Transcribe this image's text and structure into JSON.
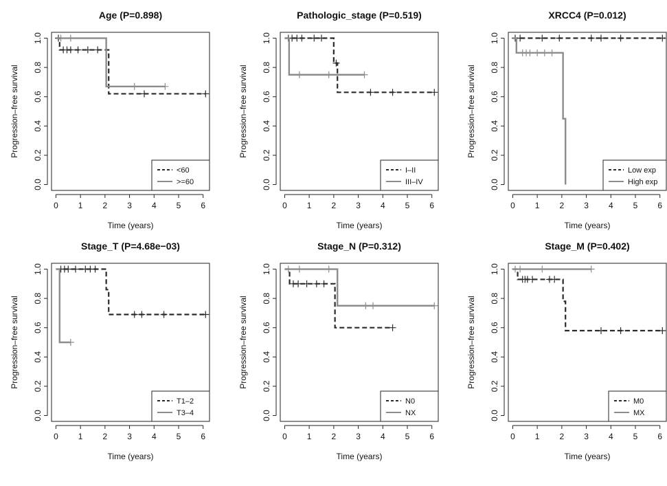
{
  "chart_data": [
    {
      "type": "line",
      "title": "Age (P=0.898)",
      "xlabel": "Time (years)",
      "ylabel": "Progression–free survival",
      "xlim": [
        0,
        6.2
      ],
      "ylim": [
        0,
        1.0
      ],
      "xticks": [
        "0",
        "1",
        "2",
        "3",
        "4",
        "5",
        "6"
      ],
      "yticks": [
        "0.0",
        "0.2",
        "0.4",
        "0.6",
        "0.8",
        "1.0"
      ],
      "legend_position": "bottom-right",
      "series": [
        {
          "name": "<60",
          "style": "dashed",
          "steps": [
            [
              0,
              1.0
            ],
            [
              0.15,
              0.92
            ],
            [
              2.15,
              0.62
            ],
            [
              6.1,
              0.62
            ]
          ],
          "censored": [
            [
              0.1,
              1.0
            ],
            [
              0.3,
              0.92
            ],
            [
              0.45,
              0.92
            ],
            [
              0.6,
              0.92
            ],
            [
              0.9,
              0.92
            ],
            [
              1.3,
              0.92
            ],
            [
              1.7,
              0.92
            ],
            [
              3.6,
              0.62
            ],
            [
              6.1,
              0.62
            ]
          ]
        },
        {
          "name": ">=60",
          "style": "solid",
          "steps": [
            [
              0,
              1.0
            ],
            [
              2.05,
              0.67
            ],
            [
              4.45,
              0.67
            ]
          ],
          "censored": [
            [
              0.2,
              1.0
            ],
            [
              0.6,
              1.0
            ],
            [
              3.2,
              0.67
            ],
            [
              4.45,
              0.67
            ]
          ]
        }
      ]
    },
    {
      "type": "line",
      "title": "Pathologic_stage (P=0.519)",
      "xlabel": "Time (years)",
      "ylabel": "Progression–free survival",
      "xlim": [
        0,
        6.2
      ],
      "ylim": [
        0,
        1.0
      ],
      "xticks": [
        "0",
        "1",
        "2",
        "3",
        "4",
        "5",
        "6"
      ],
      "yticks": [
        "0.0",
        "0.2",
        "0.4",
        "0.6",
        "0.8",
        "1.0"
      ],
      "legend_position": "bottom-right",
      "series": [
        {
          "name": "I–II",
          "style": "dashed",
          "steps": [
            [
              0,
              1.0
            ],
            [
              2.0,
              0.83
            ],
            [
              2.15,
              0.63
            ],
            [
              6.1,
              0.63
            ]
          ],
          "censored": [
            [
              0.15,
              1.0
            ],
            [
              0.3,
              1.0
            ],
            [
              0.5,
              1.0
            ],
            [
              0.7,
              1.0
            ],
            [
              1.2,
              1.0
            ],
            [
              1.5,
              1.0
            ],
            [
              2.1,
              0.83
            ],
            [
              3.5,
              0.63
            ],
            [
              4.4,
              0.63
            ],
            [
              6.1,
              0.63
            ]
          ]
        },
        {
          "name": "III–IV",
          "style": "solid",
          "steps": [
            [
              0,
              1.0
            ],
            [
              0.18,
              0.75
            ],
            [
              3.25,
              0.75
            ]
          ],
          "censored": [
            [
              0.6,
              0.75
            ],
            [
              1.8,
              0.75
            ],
            [
              3.25,
              0.75
            ]
          ]
        }
      ]
    },
    {
      "type": "line",
      "title": "XRCC4 (P=0.012)",
      "xlabel": "Time (years)",
      "ylabel": "Progression–free survival",
      "xlim": [
        0,
        6.2
      ],
      "ylim": [
        0,
        1.0
      ],
      "xticks": [
        "0",
        "1",
        "2",
        "3",
        "4",
        "5",
        "6"
      ],
      "yticks": [
        "0.0",
        "0.2",
        "0.4",
        "0.6",
        "0.8",
        "1.0"
      ],
      "legend_position": "bottom-right",
      "series": [
        {
          "name": "Low exp",
          "style": "dashed",
          "steps": [
            [
              0,
              1.0
            ],
            [
              6.2,
              1.0
            ]
          ],
          "censored": [
            [
              0.1,
              1.0
            ],
            [
              0.3,
              1.0
            ],
            [
              1.2,
              1.0
            ],
            [
              1.9,
              1.0
            ],
            [
              3.2,
              1.0
            ],
            [
              3.6,
              1.0
            ],
            [
              4.4,
              1.0
            ],
            [
              6.1,
              1.0
            ]
          ]
        },
        {
          "name": "High exp",
          "style": "solid",
          "steps": [
            [
              0,
              1.0
            ],
            [
              0.15,
              0.9
            ],
            [
              2.05,
              0.45
            ],
            [
              2.15,
              0.0
            ],
            [
              2.15,
              0.0
            ]
          ],
          "censored": [
            [
              0.4,
              0.9
            ],
            [
              0.55,
              0.9
            ],
            [
              0.7,
              0.9
            ],
            [
              1.0,
              0.9
            ],
            [
              1.3,
              0.9
            ],
            [
              1.6,
              0.9
            ]
          ]
        }
      ]
    },
    {
      "type": "line",
      "title": "Stage_T (P=4.68e−03)",
      "xlabel": "Time (years)",
      "ylabel": "Progression–free survival",
      "xlim": [
        0,
        6.2
      ],
      "ylim": [
        0,
        1.0
      ],
      "xticks": [
        "0",
        "1",
        "2",
        "3",
        "4",
        "5",
        "6"
      ],
      "yticks": [
        "0.0",
        "0.2",
        "0.4",
        "0.6",
        "0.8",
        "1.0"
      ],
      "legend_position": "bottom-right",
      "series": [
        {
          "name": "T1–2",
          "style": "dashed",
          "steps": [
            [
              0,
              1.0
            ],
            [
              2.05,
              0.86
            ],
            [
              2.15,
              0.69
            ],
            [
              6.1,
              0.69
            ]
          ],
          "censored": [
            [
              0.2,
              1.0
            ],
            [
              0.35,
              1.0
            ],
            [
              0.5,
              1.0
            ],
            [
              0.8,
              1.0
            ],
            [
              1.2,
              1.0
            ],
            [
              1.4,
              1.0
            ],
            [
              1.6,
              1.0
            ],
            [
              3.2,
              0.69
            ],
            [
              3.5,
              0.69
            ],
            [
              4.4,
              0.69
            ],
            [
              6.1,
              0.69
            ]
          ]
        },
        {
          "name": "T3–4",
          "style": "solid",
          "steps": [
            [
              0,
              1.0
            ],
            [
              0.15,
              0.5
            ],
            [
              0.6,
              0.5
            ]
          ],
          "censored": [
            [
              0.6,
              0.5
            ]
          ]
        }
      ]
    },
    {
      "type": "line",
      "title": "Stage_N (P=0.312)",
      "xlabel": "Time (years)",
      "ylabel": "Progression–free survival",
      "xlim": [
        0,
        6.2
      ],
      "ylim": [
        0,
        1.0
      ],
      "xticks": [
        "0",
        "1",
        "2",
        "3",
        "4",
        "5",
        "6"
      ],
      "yticks": [
        "0.0",
        "0.2",
        "0.4",
        "0.6",
        "0.8",
        "1.0"
      ],
      "legend_position": "bottom-right",
      "series": [
        {
          "name": "N0",
          "style": "dashed",
          "steps": [
            [
              0,
              1.0
            ],
            [
              0.2,
              0.9
            ],
            [
              2.05,
              0.6
            ],
            [
              4.4,
              0.6
            ]
          ],
          "censored": [
            [
              0.35,
              0.9
            ],
            [
              0.55,
              0.9
            ],
            [
              0.9,
              0.9
            ],
            [
              1.3,
              0.9
            ],
            [
              1.6,
              0.9
            ],
            [
              4.4,
              0.6
            ]
          ]
        },
        {
          "name": "NX",
          "style": "solid",
          "steps": [
            [
              0,
              1.0
            ],
            [
              2.15,
              0.75
            ],
            [
              6.1,
              0.75
            ]
          ],
          "censored": [
            [
              0.15,
              1.0
            ],
            [
              0.6,
              1.0
            ],
            [
              1.8,
              1.0
            ],
            [
              3.3,
              0.75
            ],
            [
              3.6,
              0.75
            ],
            [
              6.1,
              0.75
            ]
          ]
        }
      ]
    },
    {
      "type": "line",
      "title": "Stage_M (P=0.402)",
      "xlabel": "Time (years)",
      "ylabel": "Progression–free survival",
      "xlim": [
        0,
        6.2
      ],
      "ylim": [
        0,
        1.0
      ],
      "xticks": [
        "0",
        "1",
        "2",
        "3",
        "4",
        "5",
        "6"
      ],
      "yticks": [
        "0.0",
        "0.2",
        "0.4",
        "0.6",
        "0.8",
        "1.0"
      ],
      "legend_position": "bottom-right",
      "series": [
        {
          "name": "M0",
          "style": "dashed",
          "steps": [
            [
              0,
              1.0
            ],
            [
              0.2,
              0.93
            ],
            [
              2.05,
              0.78
            ],
            [
              2.15,
              0.58
            ],
            [
              6.1,
              0.58
            ]
          ],
          "censored": [
            [
              0.4,
              0.93
            ],
            [
              0.5,
              0.93
            ],
            [
              0.6,
              0.93
            ],
            [
              0.8,
              0.93
            ],
            [
              1.5,
              0.93
            ],
            [
              1.7,
              0.93
            ],
            [
              3.6,
              0.58
            ],
            [
              4.4,
              0.58
            ],
            [
              6.1,
              0.58
            ]
          ]
        },
        {
          "name": "MX",
          "style": "solid",
          "steps": [
            [
              0,
              1.0
            ],
            [
              3.2,
              1.0
            ]
          ],
          "censored": [
            [
              0.1,
              1.0
            ],
            [
              0.3,
              1.0
            ],
            [
              1.2,
              1.0
            ],
            [
              3.2,
              1.0
            ]
          ]
        }
      ]
    }
  ],
  "colors": {
    "dashed_series": "#2a2a2a",
    "solid_series": "#8c8c8c",
    "axis": "#222222"
  }
}
